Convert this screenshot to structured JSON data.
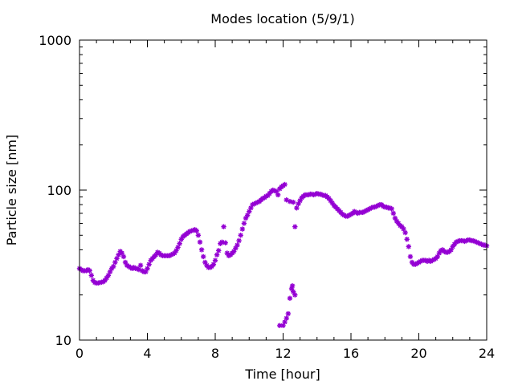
{
  "chart_data": {
    "type": "scatter",
    "title": "Modes location (5/9/1)",
    "xlabel": "Time [hour]",
    "ylabel": "Particle size [nm]",
    "xlim": [
      0,
      24
    ],
    "ylim": [
      10,
      1000
    ],
    "yscale": "log",
    "grid": false,
    "legend": "none",
    "marker_color": "#9400d3",
    "x_ticks": [
      0,
      4,
      8,
      12,
      16,
      20,
      24
    ],
    "x_tick_labels": [
      "0",
      "4",
      "8",
      "12",
      "16",
      "20",
      "24"
    ],
    "y_ticks": [
      10,
      100,
      1000
    ],
    "y_tick_labels": [
      "10",
      "100",
      "1000"
    ],
    "series": [
      {
        "points": [
          [
            0.0,
            30
          ],
          [
            0.1,
            29.5
          ],
          [
            0.2,
            29
          ],
          [
            0.3,
            29
          ],
          [
            0.4,
            29
          ],
          [
            0.5,
            29.5
          ],
          [
            0.6,
            29
          ],
          [
            0.7,
            27
          ],
          [
            0.8,
            25
          ],
          [
            0.9,
            24.2
          ],
          [
            1.0,
            24
          ],
          [
            1.1,
            24
          ],
          [
            1.2,
            24.2
          ],
          [
            1.3,
            24.3
          ],
          [
            1.4,
            24.5
          ],
          [
            1.5,
            25
          ],
          [
            1.6,
            26
          ],
          [
            1.7,
            27
          ],
          [
            1.8,
            28.5
          ],
          [
            1.9,
            30
          ],
          [
            2.0,
            31
          ],
          [
            2.1,
            33
          ],
          [
            2.2,
            35
          ],
          [
            2.3,
            37
          ],
          [
            2.4,
            39
          ],
          [
            2.5,
            38
          ],
          [
            2.6,
            36
          ],
          [
            2.7,
            33
          ],
          [
            2.8,
            31.5
          ],
          [
            2.9,
            31
          ],
          [
            3.0,
            30.5
          ],
          [
            3.1,
            30
          ],
          [
            3.2,
            30.5
          ],
          [
            3.3,
            30
          ],
          [
            3.4,
            30
          ],
          [
            3.5,
            29.5
          ],
          [
            3.6,
            31.5
          ],
          [
            3.7,
            29
          ],
          [
            3.8,
            28.5
          ],
          [
            3.9,
            28.5
          ],
          [
            4.0,
            30
          ],
          [
            4.1,
            32
          ],
          [
            4.2,
            34
          ],
          [
            4.3,
            35
          ],
          [
            4.4,
            36
          ],
          [
            4.5,
            37
          ],
          [
            4.6,
            38.5
          ],
          [
            4.7,
            38
          ],
          [
            4.8,
            37
          ],
          [
            4.9,
            36.5
          ],
          [
            5.0,
            36.5
          ],
          [
            5.1,
            36.5
          ],
          [
            5.2,
            36.5
          ],
          [
            5.3,
            36.5
          ],
          [
            5.4,
            37
          ],
          [
            5.5,
            37.5
          ],
          [
            5.6,
            38
          ],
          [
            5.7,
            39.5
          ],
          [
            5.8,
            41.5
          ],
          [
            5.9,
            44
          ],
          [
            6.0,
            47
          ],
          [
            6.1,
            49
          ],
          [
            6.2,
            50
          ],
          [
            6.3,
            51
          ],
          [
            6.4,
            52
          ],
          [
            6.5,
            53
          ],
          [
            6.6,
            53.5
          ],
          [
            6.7,
            54
          ],
          [
            6.8,
            54.5
          ],
          [
            6.9,
            53.5
          ],
          [
            7.0,
            50
          ],
          [
            7.1,
            45
          ],
          [
            7.2,
            40
          ],
          [
            7.3,
            36
          ],
          [
            7.4,
            33
          ],
          [
            7.5,
            31.5
          ],
          [
            7.6,
            30.5
          ],
          [
            7.7,
            30.5
          ],
          [
            7.8,
            31
          ],
          [
            7.9,
            32
          ],
          [
            8.0,
            34
          ],
          [
            8.1,
            37
          ],
          [
            8.2,
            39.5
          ],
          [
            8.3,
            44
          ],
          [
            8.4,
            45
          ],
          [
            8.5,
            57
          ],
          [
            8.6,
            44.5
          ],
          [
            8.7,
            38
          ],
          [
            8.8,
            36.5
          ],
          [
            8.9,
            37
          ],
          [
            9.0,
            38
          ],
          [
            9.1,
            39
          ],
          [
            9.2,
            41
          ],
          [
            9.3,
            43
          ],
          [
            9.4,
            46
          ],
          [
            9.5,
            50
          ],
          [
            9.6,
            55
          ],
          [
            9.7,
            60
          ],
          [
            9.8,
            65
          ],
          [
            9.9,
            68
          ],
          [
            10.0,
            72
          ],
          [
            10.1,
            76
          ],
          [
            10.2,
            80
          ],
          [
            10.3,
            81
          ],
          [
            10.4,
            82
          ],
          [
            10.5,
            83
          ],
          [
            10.6,
            84
          ],
          [
            10.7,
            86
          ],
          [
            10.8,
            88
          ],
          [
            10.9,
            89
          ],
          [
            11.0,
            91
          ],
          [
            11.1,
            92
          ],
          [
            11.2,
            95
          ],
          [
            11.3,
            98
          ],
          [
            11.4,
            100
          ],
          [
            11.5,
            99
          ],
          [
            11.6,
            98
          ],
          [
            11.7,
            93
          ],
          [
            11.8,
            102
          ],
          [
            11.9,
            105
          ],
          [
            12.0,
            107
          ],
          [
            12.1,
            109
          ],
          [
            12.2,
            86
          ],
          [
            12.4,
            84
          ],
          [
            12.6,
            83
          ],
          [
            12.7,
            57
          ],
          [
            12.8,
            76
          ],
          [
            12.9,
            81
          ],
          [
            13.0,
            85
          ],
          [
            13.1,
            89
          ],
          [
            13.2,
            91
          ],
          [
            13.3,
            93
          ],
          [
            13.4,
            93
          ],
          [
            13.5,
            93
          ],
          [
            13.6,
            94
          ],
          [
            13.7,
            94
          ],
          [
            13.8,
            93
          ],
          [
            13.9,
            94
          ],
          [
            14.0,
            95
          ],
          [
            14.1,
            94
          ],
          [
            14.2,
            94
          ],
          [
            14.3,
            93
          ],
          [
            14.4,
            92
          ],
          [
            14.5,
            92
          ],
          [
            14.6,
            90
          ],
          [
            14.7,
            88
          ],
          [
            14.8,
            85
          ],
          [
            14.9,
            82
          ],
          [
            15.0,
            79
          ],
          [
            15.1,
            77
          ],
          [
            15.2,
            75
          ],
          [
            15.3,
            73
          ],
          [
            15.4,
            71
          ],
          [
            15.5,
            69
          ],
          [
            15.6,
            68
          ],
          [
            15.7,
            67
          ],
          [
            15.8,
            67
          ],
          [
            15.9,
            68
          ],
          [
            16.0,
            69
          ],
          [
            16.1,
            70
          ],
          [
            16.2,
            72
          ],
          [
            16.3,
            71
          ],
          [
            16.4,
            70
          ],
          [
            16.5,
            71
          ],
          [
            16.6,
            71
          ],
          [
            16.7,
            71
          ],
          [
            16.8,
            72
          ],
          [
            16.9,
            73
          ],
          [
            17.0,
            74
          ],
          [
            17.1,
            75
          ],
          [
            17.2,
            76
          ],
          [
            17.3,
            77
          ],
          [
            17.4,
            77
          ],
          [
            17.5,
            78
          ],
          [
            17.6,
            79
          ],
          [
            17.7,
            80
          ],
          [
            17.8,
            80
          ],
          [
            17.9,
            78
          ],
          [
            18.0,
            77
          ],
          [
            18.1,
            77
          ],
          [
            18.2,
            76
          ],
          [
            18.3,
            76
          ],
          [
            18.4,
            75
          ],
          [
            18.5,
            70
          ],
          [
            18.6,
            65
          ],
          [
            18.7,
            62
          ],
          [
            18.8,
            60
          ],
          [
            18.9,
            58
          ],
          [
            19.0,
            57
          ],
          [
            19.1,
            55
          ],
          [
            19.2,
            52
          ],
          [
            19.3,
            47
          ],
          [
            19.4,
            42
          ],
          [
            19.5,
            36
          ],
          [
            19.6,
            33
          ],
          [
            19.7,
            32
          ],
          [
            19.8,
            32
          ],
          [
            19.9,
            32.5
          ],
          [
            20.0,
            33
          ],
          [
            20.1,
            33.5
          ],
          [
            20.2,
            34
          ],
          [
            20.3,
            34
          ],
          [
            20.4,
            34
          ],
          [
            20.5,
            33.5
          ],
          [
            20.6,
            34
          ],
          [
            20.7,
            33.5
          ],
          [
            20.8,
            34
          ],
          [
            20.9,
            34.5
          ],
          [
            21.0,
            35
          ],
          [
            21.1,
            36
          ],
          [
            21.2,
            38
          ],
          [
            21.3,
            39.5
          ],
          [
            21.4,
            40
          ],
          [
            21.5,
            39
          ],
          [
            21.6,
            38.5
          ],
          [
            21.7,
            38.5
          ],
          [
            21.8,
            39
          ],
          [
            21.9,
            40
          ],
          [
            22.0,
            42
          ],
          [
            22.1,
            43.5
          ],
          [
            22.2,
            45
          ],
          [
            22.3,
            45.5
          ],
          [
            22.4,
            46
          ],
          [
            22.5,
            46
          ],
          [
            22.6,
            46
          ],
          [
            22.7,
            45.5
          ],
          [
            22.8,
            46
          ],
          [
            22.9,
            46.5
          ],
          [
            23.0,
            46.5
          ],
          [
            23.1,
            46
          ],
          [
            23.2,
            46
          ],
          [
            23.3,
            45.5
          ],
          [
            23.4,
            45
          ],
          [
            23.5,
            44.5
          ],
          [
            23.6,
            44
          ],
          [
            23.7,
            43.5
          ],
          [
            23.8,
            43
          ],
          [
            23.9,
            43
          ],
          [
            24.0,
            42.5
          ],
          [
            11.8,
            12.5
          ],
          [
            12.0,
            12.5
          ],
          [
            12.1,
            13.2
          ],
          [
            12.2,
            14
          ],
          [
            12.3,
            15
          ],
          [
            12.4,
            19
          ],
          [
            12.5,
            22
          ],
          [
            12.55,
            23
          ],
          [
            12.6,
            21
          ],
          [
            12.7,
            20
          ]
        ]
      }
    ]
  }
}
